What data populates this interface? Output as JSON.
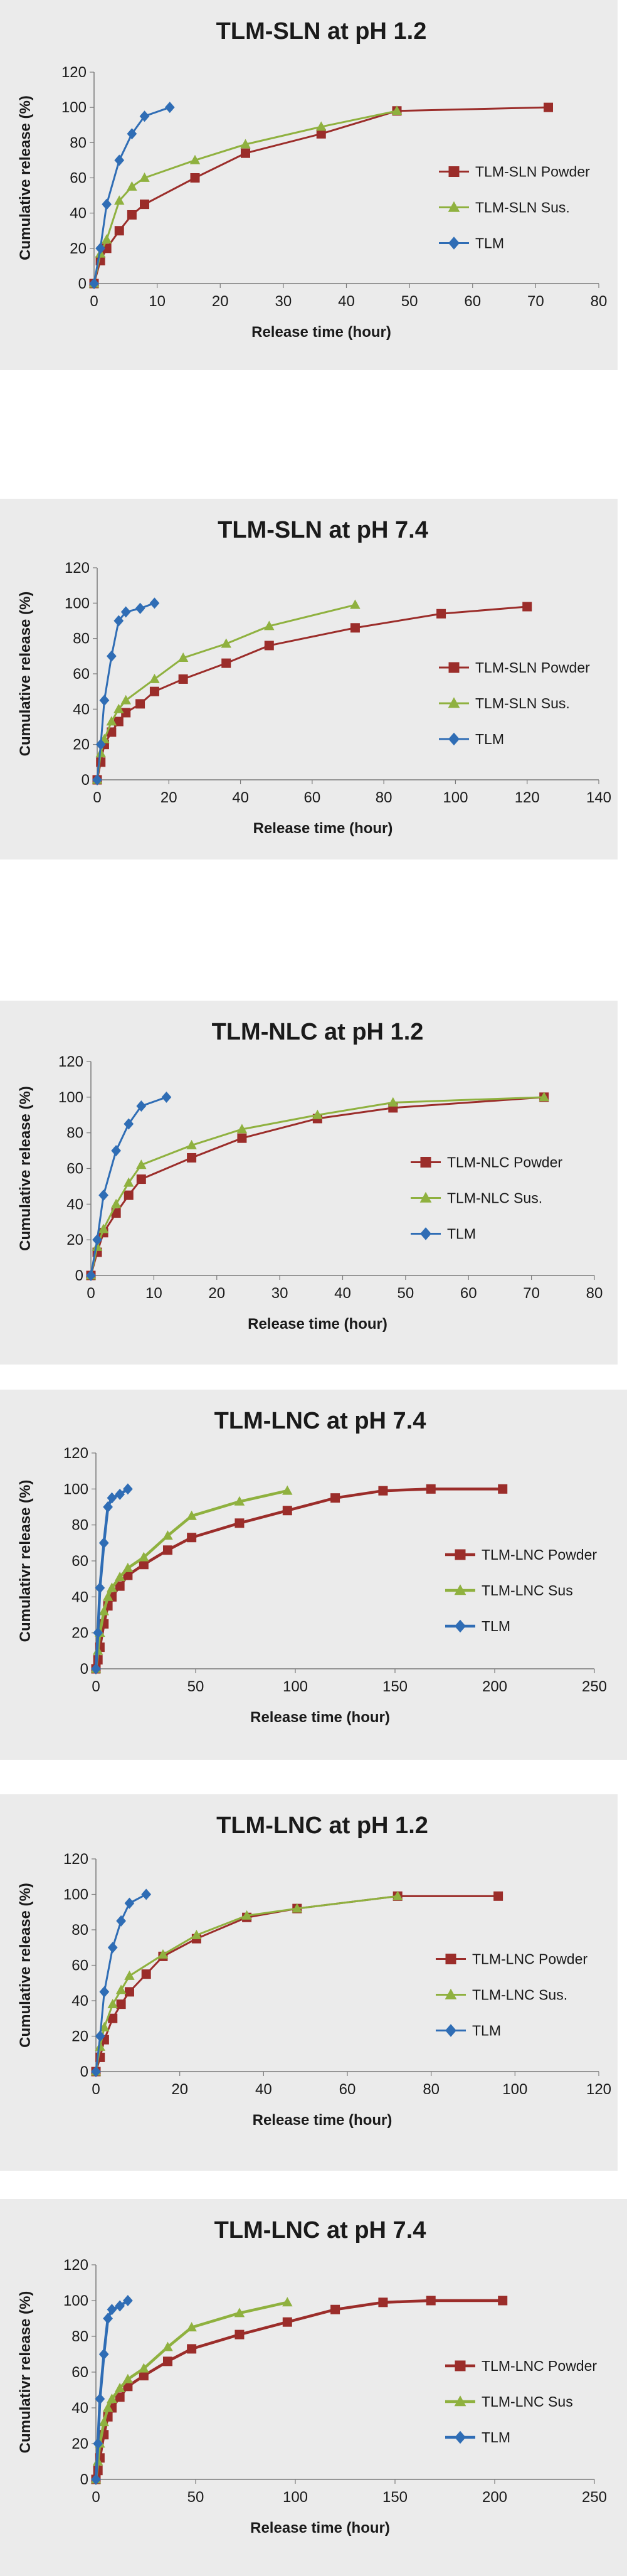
{
  "colors": {
    "powder": "#9b2d2a",
    "sus": "#8fb13f",
    "tlm": "#2f6db5",
    "panel_bg": "#ebebeb"
  },
  "chart_data": [
    {
      "type": "line",
      "title": "TLM-SLN at pH 1.2",
      "xlabel": "Release time (hour)",
      "ylabel": "Cumulative release (%)",
      "xlim": [
        0,
        80
      ],
      "ylim": [
        0,
        120
      ],
      "xticks": [
        0,
        10,
        20,
        30,
        40,
        50,
        60,
        70,
        80
      ],
      "yticks": [
        0,
        20,
        40,
        60,
        80,
        100,
        120
      ],
      "legend_position": "right",
      "series": [
        {
          "name": "TLM-SLN Powder",
          "marker": "square",
          "color": "#9b2d2a",
          "x": [
            0,
            1,
            2,
            4,
            6,
            8,
            16,
            24,
            36,
            48,
            72
          ],
          "y": [
            0,
            13,
            20,
            30,
            39,
            45,
            60,
            74,
            85,
            98,
            100
          ]
        },
        {
          "name": "TLM-SLN Sus.",
          "marker": "triangle",
          "color": "#8fb13f",
          "x": [
            0,
            1,
            2,
            4,
            6,
            8,
            16,
            24,
            36,
            48
          ],
          "y": [
            0,
            17,
            25,
            47,
            55,
            60,
            70,
            79,
            89,
            98
          ]
        },
        {
          "name": "TLM",
          "marker": "diamond",
          "color": "#2f6db5",
          "x": [
            0,
            1,
            2,
            4,
            6,
            8,
            12
          ],
          "y": [
            0,
            20,
            45,
            70,
            85,
            95,
            100
          ]
        }
      ]
    },
    {
      "type": "line",
      "title": "TLM-SLN at pH 7.4",
      "xlabel": "Release time (hour)",
      "ylabel": "Cumulative release (%)",
      "xlim": [
        0,
        140
      ],
      "ylim": [
        0,
        120
      ],
      "xticks": [
        0,
        20,
        40,
        60,
        80,
        100,
        120,
        140
      ],
      "yticks": [
        0,
        20,
        40,
        60,
        80,
        100,
        120
      ],
      "legend_position": "right",
      "series": [
        {
          "name": "TLM-SLN Powder",
          "marker": "square",
          "color": "#9b2d2a",
          "x": [
            0,
            1,
            2,
            4,
            6,
            8,
            12,
            16,
            24,
            36,
            48,
            72,
            96,
            120
          ],
          "y": [
            0,
            10,
            20,
            27,
            33,
            38,
            43,
            50,
            57,
            66,
            76,
            86,
            94,
            98
          ]
        },
        {
          "name": "TLM-SLN Sus.",
          "marker": "triangle",
          "color": "#8fb13f",
          "x": [
            0,
            1,
            2,
            4,
            6,
            8,
            16,
            24,
            36,
            48,
            72
          ],
          "y": [
            0,
            15,
            23,
            33,
            40,
            45,
            57,
            69,
            77,
            87,
            99
          ]
        },
        {
          "name": "TLM",
          "marker": "diamond",
          "color": "#2f6db5",
          "x": [
            0,
            1,
            2,
            4,
            6,
            8,
            12,
            16
          ],
          "y": [
            0,
            20,
            45,
            70,
            90,
            95,
            97,
            100
          ]
        }
      ]
    },
    {
      "type": "line",
      "title": "TLM-NLC at pH 1.2",
      "xlabel": "Release time (hour)",
      "ylabel": "Cumulative release (%)",
      "xlim": [
        0,
        80
      ],
      "ylim": [
        0,
        120
      ],
      "xticks": [
        0,
        10,
        20,
        30,
        40,
        50,
        60,
        70,
        80
      ],
      "yticks": [
        0,
        20,
        40,
        60,
        80,
        100,
        120
      ],
      "legend_position": "right",
      "series": [
        {
          "name": "TLM-NLC Powder",
          "marker": "square",
          "color": "#9b2d2a",
          "x": [
            0,
            1,
            2,
            4,
            6,
            8,
            16,
            24,
            36,
            48,
            72
          ],
          "y": [
            0,
            13,
            24,
            35,
            45,
            54,
            66,
            77,
            88,
            94,
            100
          ]
        },
        {
          "name": "TLM-NLC Sus.",
          "marker": "triangle",
          "color": "#8fb13f",
          "x": [
            0,
            1,
            2,
            4,
            6,
            8,
            16,
            24,
            36,
            48,
            72
          ],
          "y": [
            0,
            16,
            26,
            40,
            52,
            62,
            73,
            82,
            90,
            97,
            100
          ]
        },
        {
          "name": "TLM",
          "marker": "diamond",
          "color": "#2f6db5",
          "x": [
            0,
            1,
            2,
            4,
            6,
            8,
            12
          ],
          "y": [
            0,
            20,
            45,
            70,
            85,
            95,
            100
          ]
        }
      ]
    },
    {
      "type": "line",
      "title": "TLM-LNC at pH 7.4",
      "xlabel": "Release time (hour)",
      "ylabel": "Cumulativr release (%)",
      "xlim": [
        0,
        250
      ],
      "ylim": [
        0,
        120
      ],
      "xticks": [
        0,
        50,
        100,
        150,
        200,
        250
      ],
      "yticks": [
        0,
        20,
        40,
        60,
        80,
        100,
        120
      ],
      "legend_position": "right",
      "series": [
        {
          "name": "TLM-LNC Powder",
          "marker": "square",
          "color": "#9b2d2a",
          "x": [
            0,
            1,
            2,
            4,
            6,
            8,
            12,
            16,
            24,
            36,
            48,
            72,
            96,
            120,
            144,
            168,
            204
          ],
          "y": [
            0,
            5,
            12,
            25,
            35,
            40,
            46,
            52,
            58,
            66,
            73,
            81,
            88,
            95,
            99,
            100,
            100
          ]
        },
        {
          "name": "TLM-LNC Sus",
          "marker": "triangle",
          "color": "#8fb13f",
          "x": [
            0,
            1,
            2,
            4,
            6,
            8,
            12,
            16,
            24,
            36,
            48,
            72,
            96
          ],
          "y": [
            0,
            10,
            20,
            32,
            40,
            45,
            51,
            56,
            62,
            74,
            85,
            93,
            99
          ]
        },
        {
          "name": "TLM",
          "marker": "diamond",
          "color": "#2f6db5",
          "x": [
            0,
            1,
            2,
            4,
            6,
            8,
            12,
            16
          ],
          "y": [
            0,
            20,
            45,
            70,
            90,
            95,
            97,
            100
          ]
        }
      ]
    },
    {
      "type": "line",
      "title": "TLM-LNC at pH 1.2",
      "xlabel": "Release time (hour)",
      "ylabel": "Cumulative release (%)",
      "xlim": [
        0,
        120
      ],
      "ylim": [
        0,
        120
      ],
      "xticks": [
        0,
        20,
        40,
        60,
        80,
        100,
        120
      ],
      "yticks": [
        0,
        20,
        40,
        60,
        80,
        100,
        120
      ],
      "legend_position": "right",
      "series": [
        {
          "name": "TLM-LNC Powder",
          "marker": "square",
          "color": "#9b2d2a",
          "x": [
            0,
            1,
            2,
            4,
            6,
            8,
            12,
            16,
            24,
            36,
            48,
            72,
            96
          ],
          "y": [
            0,
            8,
            18,
            30,
            38,
            45,
            55,
            65,
            75,
            87,
            92,
            99,
            99
          ]
        },
        {
          "name": "TLM-LNC Sus.",
          "marker": "triangle",
          "color": "#8fb13f",
          "x": [
            0,
            1,
            2,
            4,
            6,
            8,
            16,
            24,
            36,
            48,
            72
          ],
          "y": [
            0,
            14,
            25,
            38,
            46,
            54,
            66,
            77,
            88,
            92,
            99
          ]
        },
        {
          "name": "TLM",
          "marker": "diamond",
          "color": "#2f6db5",
          "x": [
            0,
            1,
            2,
            4,
            6,
            8,
            12
          ],
          "y": [
            0,
            20,
            45,
            70,
            85,
            95,
            100
          ]
        }
      ]
    },
    {
      "type": "line",
      "title": "TLM-LNC at pH 7.4",
      "xlabel": "Release time (hour)",
      "ylabel": "Cumulativr release (%)",
      "xlim": [
        0,
        250
      ],
      "ylim": [
        0,
        120
      ],
      "xticks": [
        0,
        50,
        100,
        150,
        200,
        250
      ],
      "yticks": [
        0,
        20,
        40,
        60,
        80,
        100,
        120
      ],
      "legend_position": "right",
      "series": [
        {
          "name": "TLM-LNC Powder",
          "marker": "square",
          "color": "#9b2d2a",
          "x": [
            0,
            1,
            2,
            4,
            6,
            8,
            12,
            16,
            24,
            36,
            48,
            72,
            96,
            120,
            144,
            168,
            204
          ],
          "y": [
            0,
            5,
            12,
            25,
            35,
            40,
            46,
            52,
            58,
            66,
            73,
            81,
            88,
            95,
            99,
            100,
            100
          ]
        },
        {
          "name": "TLM-LNC Sus",
          "marker": "triangle",
          "color": "#8fb13f",
          "x": [
            0,
            1,
            2,
            4,
            6,
            8,
            12,
            16,
            24,
            36,
            48,
            72,
            96
          ],
          "y": [
            0,
            10,
            20,
            32,
            40,
            45,
            51,
            56,
            62,
            74,
            85,
            93,
            99
          ]
        },
        {
          "name": "TLM",
          "marker": "diamond",
          "color": "#2f6db5",
          "x": [
            0,
            1,
            2,
            4,
            6,
            8,
            12,
            16
          ],
          "y": [
            0,
            20,
            45,
            70,
            90,
            95,
            97,
            100
          ]
        }
      ]
    }
  ]
}
